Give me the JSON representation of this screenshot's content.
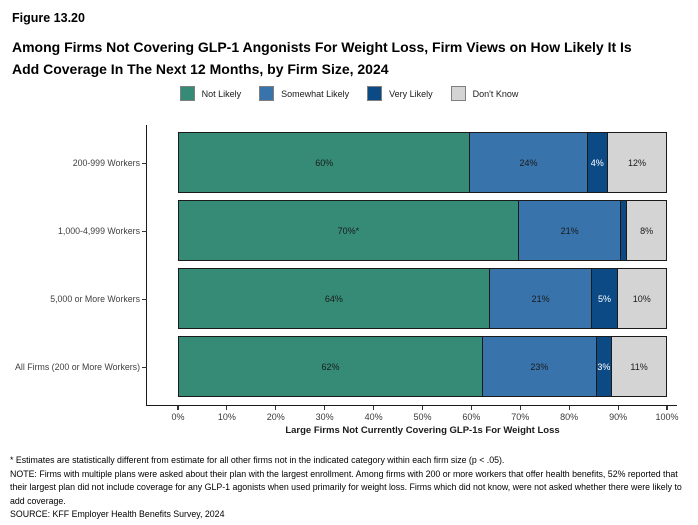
{
  "figure_number": "Figure 13.20",
  "title_line1": "Among Firms Not Covering GLP-1 Angonists For Weight Loss, Firm Views on How Likely It Is",
  "title_line2": "Add Coverage In The Next 12 Months, by Firm Size, 2024",
  "chart_data": {
    "type": "bar",
    "orientation": "horizontal_stacked",
    "title": "Among Firms Not Covering GLP-1 Angonists For Weight Loss, Firm Views on How Likely It Is Add Coverage In The Next 12 Months, by Firm Size, 2024",
    "categories": [
      "200-999 Workers",
      "1,000-4,999 Workers",
      "5,000 or More Workers",
      "All Firms (200 or More Workers)"
    ],
    "series": [
      {
        "name": "Not Likely",
        "color": "#358B76",
        "label_color": "#1a1a1a",
        "values": [
          60,
          70,
          64,
          62
        ],
        "labels": [
          "60%",
          "70%*",
          "64%",
          "62%"
        ]
      },
      {
        "name": "Somewhat Likely",
        "color": "#3873AB",
        "label_color": "#1a1a1a",
        "values": [
          24,
          21,
          21,
          23
        ],
        "labels": [
          "24%",
          "21%",
          "21%",
          "23%"
        ]
      },
      {
        "name": "Very Likely",
        "color": "#0C4A86",
        "label_color": "#ffffff",
        "values": [
          4,
          1,
          5,
          3
        ],
        "labels": [
          "4%",
          "",
          "5%",
          "3%"
        ]
      },
      {
        "name": "Don't Know",
        "color": "#D4D4D4",
        "label_color": "#1a1a1a",
        "values": [
          12,
          8,
          10,
          11
        ],
        "labels": [
          "12%",
          "8%",
          "10%",
          "11%"
        ]
      }
    ],
    "xlabel": "Large Firms Not Currently Covering GLP-1s For Weight Loss",
    "x_ticks": [
      "0%",
      "10%",
      "20%",
      "30%",
      "40%",
      "50%",
      "60%",
      "70%",
      "80%",
      "90%",
      "100%"
    ],
    "xlim": [
      0,
      100
    ],
    "grid": false,
    "legend_position": "top"
  },
  "footnotes": [
    "* Estimates are statistically different from estimate for all other firms not in the indicated category within each firm size (p < .05).",
    "NOTE: Firms with multiple plans were asked about their plan with the largest enrollment.  Among firms with 200 or more workers that offer health benefits, 52% reported that their largest plan did not include coverage for any GLP-1 agonists when used primarily for weight loss.  Firms which did not know, were not asked whether there were likely to add coverage.",
    "SOURCE: KFF Employer Health Benefits Survey, 2024"
  ]
}
